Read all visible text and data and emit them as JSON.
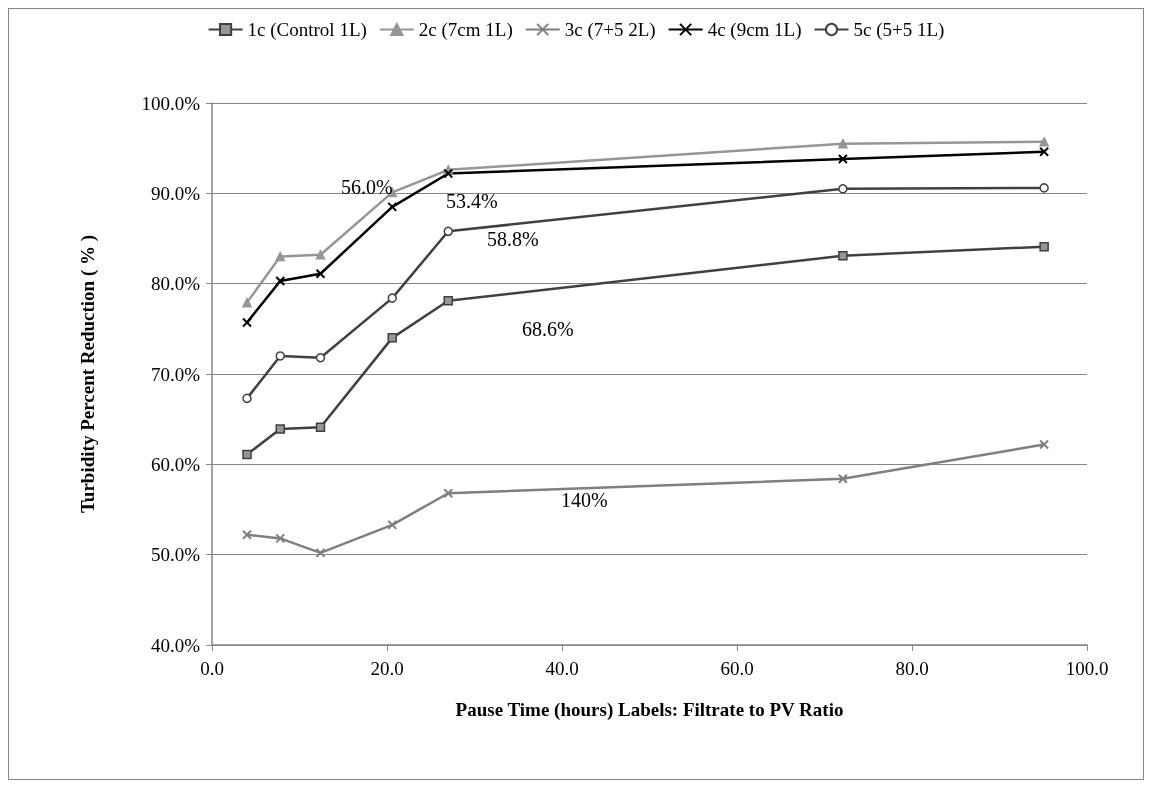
{
  "chart_data": {
    "type": "line",
    "xlabel": "Pause Time (hours) Labels: Filtrate to PV Ratio",
    "ylabel": "Turbidity Percent Reduction ( % )",
    "x": [
      4.0,
      7.8,
      12.4,
      20.6,
      27.0,
      72.1,
      95.1
    ],
    "series": [
      {
        "name": "1c (Control 1L)",
        "color": "#404040",
        "marker": "square",
        "values": [
          61.1,
          63.9,
          64.1,
          74.0,
          78.1,
          83.1,
          84.1
        ]
      },
      {
        "name": "2c (7cm 1L)",
        "color": "#969696",
        "marker": "triangle",
        "values": [
          77.9,
          83.0,
          83.2,
          90.1,
          92.6,
          95.5,
          95.7
        ]
      },
      {
        "name": "3c (7+5 2L)",
        "color": "#7f7f7f",
        "marker": "cross",
        "values": [
          52.2,
          51.8,
          50.2,
          53.3,
          56.8,
          58.4,
          62.2
        ]
      },
      {
        "name": "4c (9cm 1L)",
        "color": "#000000",
        "marker": "cross",
        "values": [
          75.7,
          80.3,
          81.1,
          88.5,
          92.2,
          93.8,
          94.6
        ]
      },
      {
        "name": "5c (5+5 1L)",
        "color": "#404040",
        "marker": "circle",
        "values": [
          67.3,
          72.0,
          71.8,
          78.4,
          85.8,
          90.5,
          90.6
        ]
      }
    ],
    "xlim": [
      0,
      100
    ],
    "xticks": [
      {
        "value": 0,
        "label": "0.0"
      },
      {
        "value": 20,
        "label": "20.0"
      },
      {
        "value": 40,
        "label": "40.0"
      },
      {
        "value": 60,
        "label": "60.0"
      },
      {
        "value": 80,
        "label": "80.0"
      },
      {
        "value": 100,
        "label": "100.0"
      }
    ],
    "ylim": [
      40,
      100
    ],
    "yticks": [
      {
        "value": 40,
        "label": "40.0%"
      },
      {
        "value": 50,
        "label": "50.0%"
      },
      {
        "value": 60,
        "label": "60.0%"
      },
      {
        "value": 70,
        "label": "70.0%"
      },
      {
        "value": 80,
        "label": "80.0%"
      },
      {
        "value": 90,
        "label": "90.0%"
      },
      {
        "value": 100,
        "label": "100.0%"
      }
    ],
    "annotations": [
      "56.0%",
      "53.4%",
      "58.8%",
      "68.6%",
      "140%"
    ],
    "grid": "y",
    "legend": "top"
  }
}
